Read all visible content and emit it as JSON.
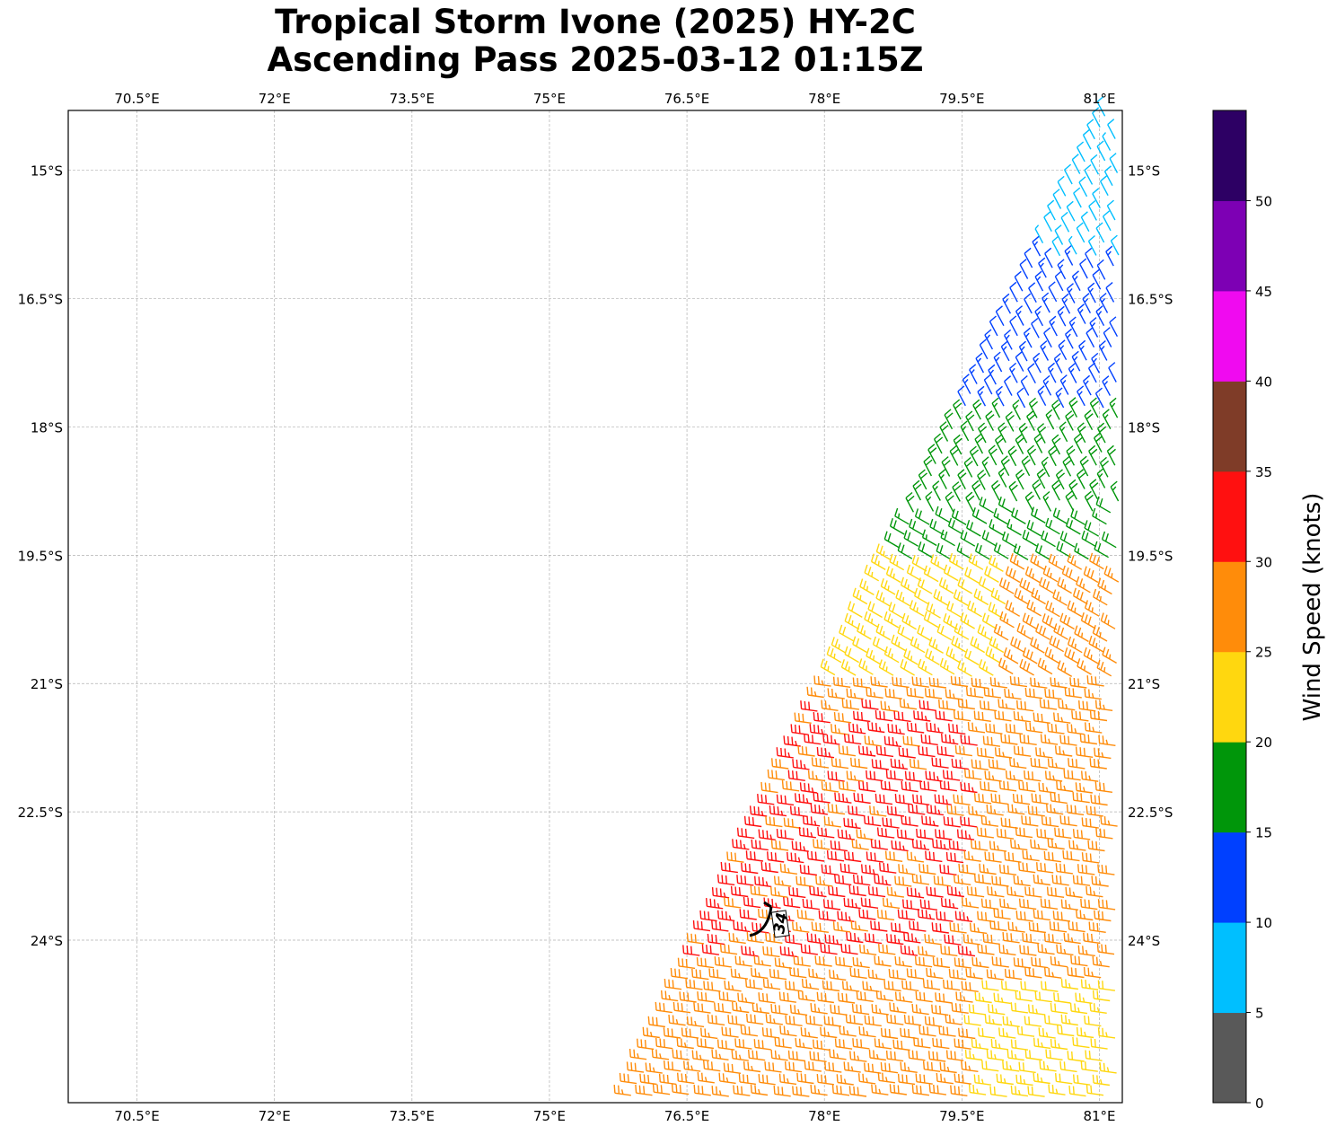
{
  "title": {
    "line1": "Tropical Storm Ivone (2025) HY-2C",
    "line2": "Ascending Pass 2025-03-12 01:15Z"
  },
  "map": {
    "lon_range": [
      69.75,
      81.25
    ],
    "lat_range": [
      -25.9,
      -14.3
    ],
    "lon_ticks": [
      70.5,
      72,
      73.5,
      75,
      76.5,
      78,
      79.5,
      81
    ],
    "lon_labels": [
      "70.5°E",
      "72°E",
      "73.5°E",
      "75°E",
      "76.5°E",
      "78°E",
      "79.5°E",
      "81°E"
    ],
    "lat_ticks": [
      -15,
      -16.5,
      -18,
      -19.5,
      -21,
      -22.5,
      -24
    ],
    "lat_labels": [
      "15°S",
      "16.5°S",
      "18°S",
      "19.5°S",
      "21°S",
      "22.5°S",
      "24°S"
    ],
    "gridlines": true,
    "center_marker": {
      "lon": 77.4,
      "lat": -23.8,
      "label": "34"
    }
  },
  "colorbar": {
    "label": "Wind Speed (knots)",
    "tick_labels": [
      "0",
      "5",
      "10",
      "15",
      "20",
      "25",
      "30",
      "35",
      "40",
      "45",
      "50"
    ],
    "bins": [
      {
        "min": 0,
        "max": 5,
        "color": "#595959"
      },
      {
        "min": 5,
        "max": 10,
        "color": "#00bfff"
      },
      {
        "min": 10,
        "max": 15,
        "color": "#0040ff"
      },
      {
        "min": 15,
        "max": 20,
        "color": "#00960a"
      },
      {
        "min": 20,
        "max": 25,
        "color": "#ffd70f"
      },
      {
        "min": 25,
        "max": 30,
        "color": "#ff8c0a"
      },
      {
        "min": 30,
        "max": 35,
        "color": "#ff1010"
      },
      {
        "min": 35,
        "max": 40,
        "color": "#7f3c28"
      },
      {
        "min": 40,
        "max": 45,
        "color": "#f00af0"
      },
      {
        "min": 45,
        "max": 50,
        "color": "#7d00b4"
      },
      {
        "min": 50,
        "max": 55,
        "color": "#2d0064"
      }
    ]
  }
}
